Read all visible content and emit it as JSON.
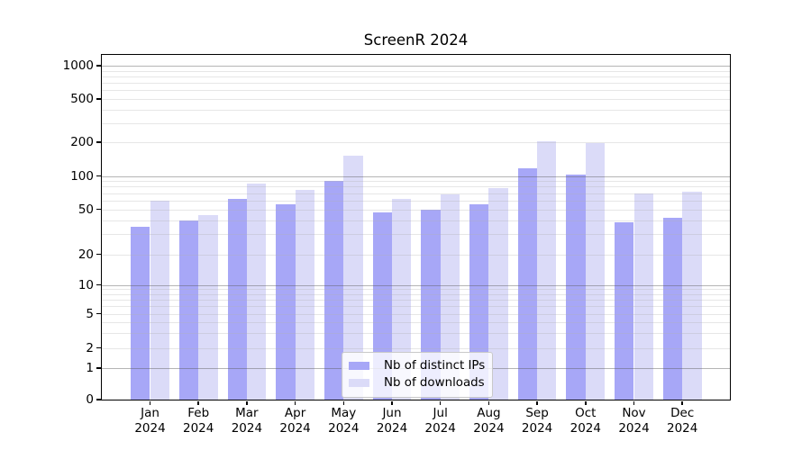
{
  "chart_data": {
    "type": "bar",
    "title": "ScreenR 2024",
    "categories": [
      "Jan",
      "Feb",
      "Mar",
      "Apr",
      "May",
      "Jun",
      "Jul",
      "Aug",
      "Sep",
      "Oct",
      "Nov",
      "Dec"
    ],
    "category_year": "2024",
    "series": [
      {
        "name": "Nb of distinct IPs",
        "color": "#a7a7f7",
        "values": [
          35,
          40,
          62,
          55,
          91,
          47,
          50,
          55,
          118,
          103,
          38,
          42
        ]
      },
      {
        "name": "Nb of downloads",
        "color": "#dbdbf8",
        "values": [
          60,
          44,
          85,
          75,
          152,
          62,
          68,
          77,
          205,
          197,
          70,
          72
        ]
      }
    ],
    "yscale": "symlog",
    "yticks": [
      0,
      1,
      2,
      5,
      10,
      20,
      50,
      100,
      200,
      500,
      1000
    ],
    "major_grid_values": [
      1,
      10,
      100,
      1000
    ],
    "ylim": [
      0,
      1200
    ],
    "grid": "major+minor",
    "legend_position": "lower center",
    "background_color": "#ffffff",
    "spine_color": "#000000"
  }
}
